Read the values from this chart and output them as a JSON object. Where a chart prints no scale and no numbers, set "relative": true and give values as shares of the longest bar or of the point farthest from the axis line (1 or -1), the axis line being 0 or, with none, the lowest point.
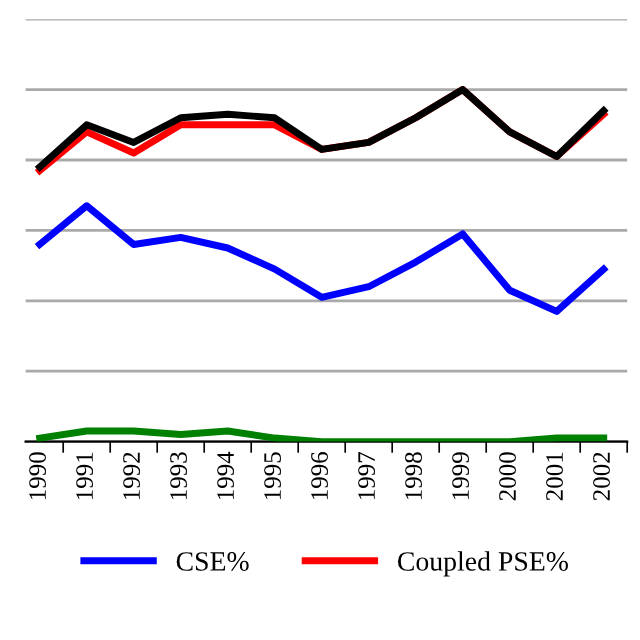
{
  "chart_data": {
    "type": "line",
    "relative": true,
    "categories": [
      "1990",
      "1991",
      "1992",
      "1993",
      "1994",
      "1995",
      "1996",
      "1997",
      "1998",
      "1999",
      "2000",
      "2001",
      "2002"
    ],
    "series": [
      {
        "color": "#000000",
        "values": [
          0.78,
          0.9,
          0.85,
          0.92,
          0.93,
          0.92,
          0.83,
          0.85,
          0.92,
          1.0,
          0.88,
          0.81,
          0.94
        ]
      },
      {
        "name": "Coupled PSE%",
        "color": "#ff0000",
        "values": [
          0.77,
          0.88,
          0.82,
          0.9,
          0.9,
          0.9,
          0.83,
          0.85,
          0.92,
          1.0,
          0.88,
          0.81,
          0.93
        ]
      },
      {
        "name": "CSE%",
        "color": "#0000ff",
        "values": [
          0.56,
          0.67,
          0.56,
          0.58,
          0.55,
          0.49,
          0.41,
          0.44,
          0.51,
          0.59,
          0.43,
          0.37,
          0.49
        ]
      },
      {
        "color": "#008000",
        "values": [
          0.01,
          0.03,
          0.03,
          0.02,
          0.03,
          0.01,
          0.0,
          0.0,
          0.0,
          0.0,
          0.0,
          0.01,
          0.01
        ]
      }
    ],
    "grid": "y",
    "legend": "bottom",
    "marker": "none",
    "line_style": "solid"
  }
}
